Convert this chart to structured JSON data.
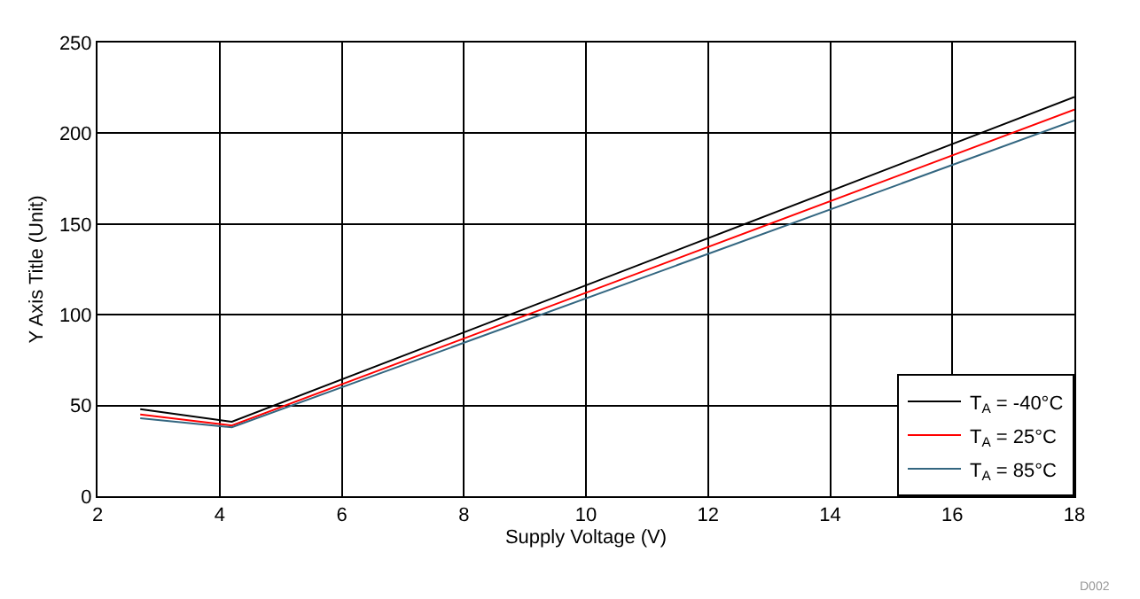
{
  "chart_data": {
    "type": "line",
    "xlabel": "Supply Voltage (V)",
    "ylabel": "Y Axis Title (Unit)",
    "x": [
      2.7,
      4.2,
      18
    ],
    "series": [
      {
        "name": "T$_{A}$ = -40°C",
        "color": "#000000",
        "values": [
          48,
          41,
          220
        ]
      },
      {
        "name": "T$_{A}$ = 25°C",
        "color": "#ff0000",
        "values": [
          45,
          39,
          213
        ]
      },
      {
        "name": "T$_{A}$ = 85°C",
        "color": "#336680",
        "values": [
          43,
          38,
          207
        ]
      }
    ],
    "xlim": [
      2,
      18
    ],
    "xticks": [
      2,
      4,
      6,
      8,
      10,
      12,
      14,
      16,
      18
    ],
    "ylim": [
      0,
      250
    ],
    "yticks": [
      0,
      50,
      100,
      150,
      200,
      250
    ],
    "grid": true,
    "legend": "bottom right",
    "marker": "none",
    "line_style": "solid",
    "annotations": [
      "D002"
    ]
  }
}
